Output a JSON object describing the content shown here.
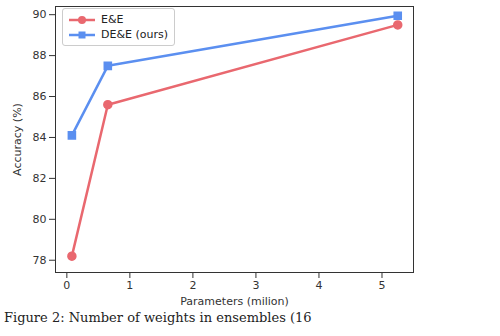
{
  "chart_data": {
    "type": "line",
    "x_label": "Parameters (milion)",
    "y_label": "Accuracy (%)",
    "caption": "Figure 2: Number of weights in ensembles (16",
    "series": [
      {
        "name": "E&E",
        "color": "#e9686f",
        "marker": "circle",
        "x": [
          0.08,
          0.65,
          5.25
        ],
        "values": [
          78.2,
          85.6,
          89.5
        ]
      },
      {
        "name": "DE&E (ours)",
        "color": "#5b8ff0",
        "marker": "square",
        "x": [
          0.08,
          0.65,
          5.25
        ],
        "values": [
          84.1,
          87.5,
          89.95
        ]
      }
    ],
    "xlim": [
      -0.18,
      5.5
    ],
    "xticks": [
      0,
      1,
      2,
      3,
      4,
      5
    ],
    "ylim": [
      77.4,
      90.4
    ],
    "yticks": [
      78,
      80,
      82,
      84,
      86,
      88,
      90
    ],
    "grid": false,
    "legend": "upper left"
  }
}
